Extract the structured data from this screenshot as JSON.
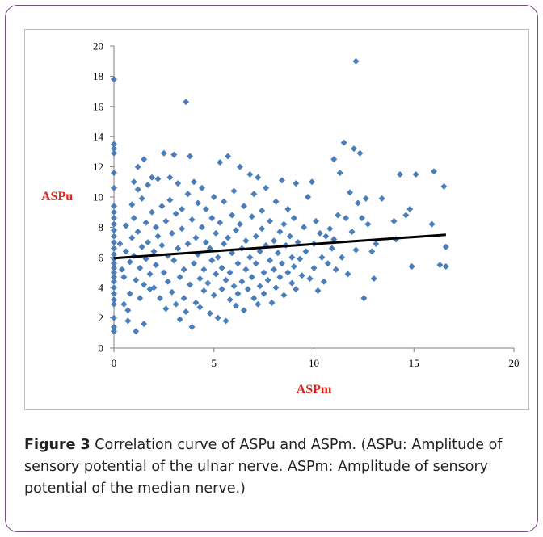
{
  "figure": {
    "label": "Figure 3",
    "caption": "Correlation curve of ASPu and ASPm. (ASPu: Amplitude of sensory potential of the ulnar nerve. ASPm: Amplitude of sensory potential of the median nerve.)"
  },
  "colors": {
    "marker": "#4a7ebb",
    "trendline": "#000000",
    "axis_title": "#e0251b",
    "frame": "#7a4a86"
  },
  "chart_data": {
    "type": "scatter",
    "title": "",
    "xlabel": "ASPm",
    "ylabel": "ASPu",
    "xlim": [
      0,
      20
    ],
    "ylim": [
      0,
      20
    ],
    "xticks": [
      0,
      5,
      10,
      15,
      20
    ],
    "yticks": [
      0,
      2,
      4,
      6,
      8,
      10,
      12,
      14,
      16,
      18,
      20
    ],
    "grid": false,
    "legend": "none",
    "marker": "diamond",
    "series": [
      {
        "points": [
          [
            0,
            17.8
          ],
          [
            0,
            13.5
          ],
          [
            0,
            13.2
          ],
          [
            0,
            12.9
          ],
          [
            0,
            11.6
          ],
          [
            0,
            10.6
          ],
          [
            0,
            9.4
          ],
          [
            0,
            9.0
          ],
          [
            0,
            8.6
          ],
          [
            0,
            8.2
          ],
          [
            0,
            7.8
          ],
          [
            0,
            7.4
          ],
          [
            0,
            7.0
          ],
          [
            0,
            6.6
          ],
          [
            0,
            6.2
          ],
          [
            0,
            5.9
          ],
          [
            0,
            5.6
          ],
          [
            0,
            5.3
          ],
          [
            0,
            5.0
          ],
          [
            0,
            4.7
          ],
          [
            0,
            4.4
          ],
          [
            0,
            4.0
          ],
          [
            0,
            3.6
          ],
          [
            0,
            3.2
          ],
          [
            0,
            2.9
          ],
          [
            0,
            2.0
          ],
          [
            0,
            1.4
          ],
          [
            0,
            1.1
          ],
          [
            0.3,
            6.9
          ],
          [
            0.4,
            5.2
          ],
          [
            0.5,
            4.7
          ],
          [
            0.5,
            2.9
          ],
          [
            0.6,
            8.1
          ],
          [
            0.6,
            6.4
          ],
          [
            0.7,
            2.5
          ],
          [
            0.7,
            1.8
          ],
          [
            0.8,
            3.6
          ],
          [
            0.8,
            5.7
          ],
          [
            0.9,
            7.3
          ],
          [
            0.9,
            9.5
          ],
          [
            1.0,
            11.0
          ],
          [
            1.0,
            8.6
          ],
          [
            1.0,
            6.1
          ],
          [
            1.1,
            4.5
          ],
          [
            1.1,
            1.1
          ],
          [
            1.2,
            12.0
          ],
          [
            1.2,
            10.5
          ],
          [
            1.2,
            7.7
          ],
          [
            1.3,
            5.3
          ],
          [
            1.3,
            3.3
          ],
          [
            1.4,
            9.9
          ],
          [
            1.4,
            6.7
          ],
          [
            1.5,
            12.5
          ],
          [
            1.5,
            4.2
          ],
          [
            1.5,
            1.6
          ],
          [
            1.6,
            8.3
          ],
          [
            1.6,
            5.9
          ],
          [
            1.7,
            10.8
          ],
          [
            1.7,
            7.0
          ],
          [
            1.8,
            4.9
          ],
          [
            1.8,
            3.9
          ],
          [
            1.9,
            11.3
          ],
          [
            1.9,
            9.0
          ],
          [
            2.0,
            6.4
          ],
          [
            2.0,
            4.0
          ],
          [
            2.1,
            8.0
          ],
          [
            2.1,
            5.5
          ],
          [
            2.2,
            11.2
          ],
          [
            2.2,
            7.4
          ],
          [
            2.3,
            3.3
          ],
          [
            2.4,
            6.8
          ],
          [
            2.4,
            9.4
          ],
          [
            2.5,
            12.9
          ],
          [
            2.5,
            5.0
          ],
          [
            2.6,
            2.6
          ],
          [
            2.6,
            8.4
          ],
          [
            2.7,
            6.1
          ],
          [
            2.7,
            4.4
          ],
          [
            2.8,
            11.3
          ],
          [
            2.8,
            9.8
          ],
          [
            2.9,
            7.6
          ],
          [
            2.9,
            3.7
          ],
          [
            3.0,
            12.8
          ],
          [
            3.0,
            5.8
          ],
          [
            3.1,
            2.9
          ],
          [
            3.1,
            8.9
          ],
          [
            3.2,
            10.9
          ],
          [
            3.2,
            6.6
          ],
          [
            3.3,
            4.7
          ],
          [
            3.3,
            1.9
          ],
          [
            3.4,
            7.9
          ],
          [
            3.4,
            9.2
          ],
          [
            3.5,
            3.3
          ],
          [
            3.5,
            5.2
          ],
          [
            3.6,
            16.3
          ],
          [
            3.6,
            2.4
          ],
          [
            3.7,
            10.2
          ],
          [
            3.7,
            6.9
          ],
          [
            3.8,
            4.2
          ],
          [
            3.8,
            12.7
          ],
          [
            3.9,
            8.5
          ],
          [
            3.9,
            1.4
          ],
          [
            4.0,
            5.6
          ],
          [
            4.0,
            11.0
          ],
          [
            4.1,
            7.3
          ],
          [
            4.1,
            3.0
          ],
          [
            4.2,
            9.6
          ],
          [
            4.2,
            6.2
          ],
          [
            4.3,
            4.6
          ],
          [
            4.3,
            2.7
          ],
          [
            4.4,
            10.6
          ],
          [
            4.4,
            8.0
          ],
          [
            4.5,
            5.2
          ],
          [
            4.5,
            3.8
          ],
          [
            4.6,
            7.0
          ],
          [
            4.6,
            9.2
          ],
          [
            4.7,
            4.3
          ],
          [
            4.8,
            6.6
          ],
          [
            4.8,
            2.3
          ],
          [
            4.9,
            8.6
          ],
          [
            4.9,
            5.8
          ],
          [
            5.0,
            10.0
          ],
          [
            5.0,
            3.5
          ],
          [
            5.1,
            7.6
          ],
          [
            5.1,
            4.9
          ],
          [
            5.2,
            6.0
          ],
          [
            5.2,
            2.0
          ],
          [
            5.3,
            12.3
          ],
          [
            5.3,
            8.3
          ],
          [
            5.4,
            5.3
          ],
          [
            5.4,
            3.9
          ],
          [
            5.5,
            9.7
          ],
          [
            5.5,
            6.9
          ],
          [
            5.6,
            4.5
          ],
          [
            5.6,
            1.8
          ],
          [
            5.7,
            12.7
          ],
          [
            5.7,
            7.3
          ],
          [
            5.8,
            5.0
          ],
          [
            5.8,
            3.2
          ],
          [
            5.9,
            8.8
          ],
          [
            5.9,
            6.3
          ],
          [
            6.0,
            4.1
          ],
          [
            6.0,
            10.4
          ],
          [
            6.1,
            7.8
          ],
          [
            6.1,
            2.8
          ],
          [
            6.2,
            5.6
          ],
          [
            6.2,
            3.6
          ],
          [
            6.3,
            12.0
          ],
          [
            6.3,
            8.2
          ],
          [
            6.4,
            6.6
          ],
          [
            6.4,
            4.4
          ],
          [
            6.5,
            9.4
          ],
          [
            6.5,
            2.5
          ],
          [
            6.6,
            7.1
          ],
          [
            6.6,
            5.2
          ],
          [
            6.7,
            3.9
          ],
          [
            6.8,
            11.5
          ],
          [
            6.8,
            6.0
          ],
          [
            6.9,
            8.7
          ],
          [
            6.9,
            4.7
          ],
          [
            7.0,
            10.2
          ],
          [
            7.0,
            3.3
          ],
          [
            7.1,
            7.4
          ],
          [
            7.1,
            5.6
          ],
          [
            7.2,
            11.3
          ],
          [
            7.2,
            2.9
          ],
          [
            7.3,
            6.4
          ],
          [
            7.3,
            4.1
          ],
          [
            7.4,
            9.1
          ],
          [
            7.4,
            7.9
          ],
          [
            7.5,
            5.0
          ],
          [
            7.5,
            3.6
          ],
          [
            7.6,
            10.6
          ],
          [
            7.6,
            6.8
          ],
          [
            7.7,
            4.5
          ],
          [
            7.8,
            8.4
          ],
          [
            7.8,
            5.8
          ],
          [
            7.9,
            3.0
          ],
          [
            8.0,
            7.1
          ],
          [
            8.0,
            5.2
          ],
          [
            8.1,
            9.7
          ],
          [
            8.1,
            4.0
          ],
          [
            8.2,
            6.3
          ],
          [
            8.3,
            7.7
          ],
          [
            8.3,
            4.7
          ],
          [
            8.4,
            11.1
          ],
          [
            8.4,
            5.6
          ],
          [
            8.5,
            8.2
          ],
          [
            8.5,
            3.5
          ],
          [
            8.6,
            6.8
          ],
          [
            8.7,
            5.0
          ],
          [
            8.7,
            9.2
          ],
          [
            8.8,
            7.4
          ],
          [
            8.9,
            4.3
          ],
          [
            8.9,
            6.0
          ],
          [
            9.0,
            8.6
          ],
          [
            9.0,
            5.4
          ],
          [
            9.1,
            10.9
          ],
          [
            9.1,
            3.9
          ],
          [
            9.2,
            7.0
          ],
          [
            9.3,
            5.9
          ],
          [
            9.4,
            4.8
          ],
          [
            9.5,
            8.0
          ],
          [
            9.6,
            6.4
          ],
          [
            9.7,
            10.0
          ],
          [
            9.8,
            4.6
          ],
          [
            9.9,
            11.0
          ],
          [
            10.0,
            6.9
          ],
          [
            10.0,
            5.3
          ],
          [
            10.1,
            8.4
          ],
          [
            10.2,
            3.8
          ],
          [
            10.3,
            7.6
          ],
          [
            10.4,
            6.0
          ],
          [
            10.5,
            4.4
          ],
          [
            10.6,
            7.4
          ],
          [
            10.7,
            5.6
          ],
          [
            10.8,
            7.9
          ],
          [
            10.9,
            6.6
          ],
          [
            11.0,
            12.5
          ],
          [
            11.0,
            7.2
          ],
          [
            11.1,
            5.2
          ],
          [
            11.2,
            8.8
          ],
          [
            11.3,
            11.6
          ],
          [
            11.4,
            6.0
          ],
          [
            11.5,
            13.6
          ],
          [
            11.6,
            8.6
          ],
          [
            11.7,
            4.9
          ],
          [
            11.8,
            10.3
          ],
          [
            11.9,
            7.7
          ],
          [
            12.0,
            13.2
          ],
          [
            12.1,
            19.0
          ],
          [
            12.1,
            6.5
          ],
          [
            12.2,
            9.6
          ],
          [
            12.3,
            12.9
          ],
          [
            12.4,
            8.6
          ],
          [
            12.5,
            3.3
          ],
          [
            12.6,
            9.9
          ],
          [
            12.7,
            8.2
          ],
          [
            12.9,
            6.4
          ],
          [
            13.0,
            4.6
          ],
          [
            13.1,
            6.9
          ],
          [
            13.4,
            9.9
          ],
          [
            14.0,
            8.4
          ],
          [
            14.1,
            7.2
          ],
          [
            14.3,
            11.5
          ],
          [
            14.6,
            8.8
          ],
          [
            14.8,
            9.2
          ],
          [
            14.9,
            5.4
          ],
          [
            15.1,
            11.5
          ],
          [
            15.9,
            8.2
          ],
          [
            16.0,
            11.7
          ],
          [
            16.3,
            5.5
          ],
          [
            16.5,
            10.7
          ],
          [
            16.6,
            6.7
          ],
          [
            16.6,
            5.4
          ]
        ]
      }
    ],
    "trendline": {
      "type": "linear",
      "x": [
        0,
        16.6
      ],
      "y": [
        5.95,
        7.5
      ]
    }
  }
}
